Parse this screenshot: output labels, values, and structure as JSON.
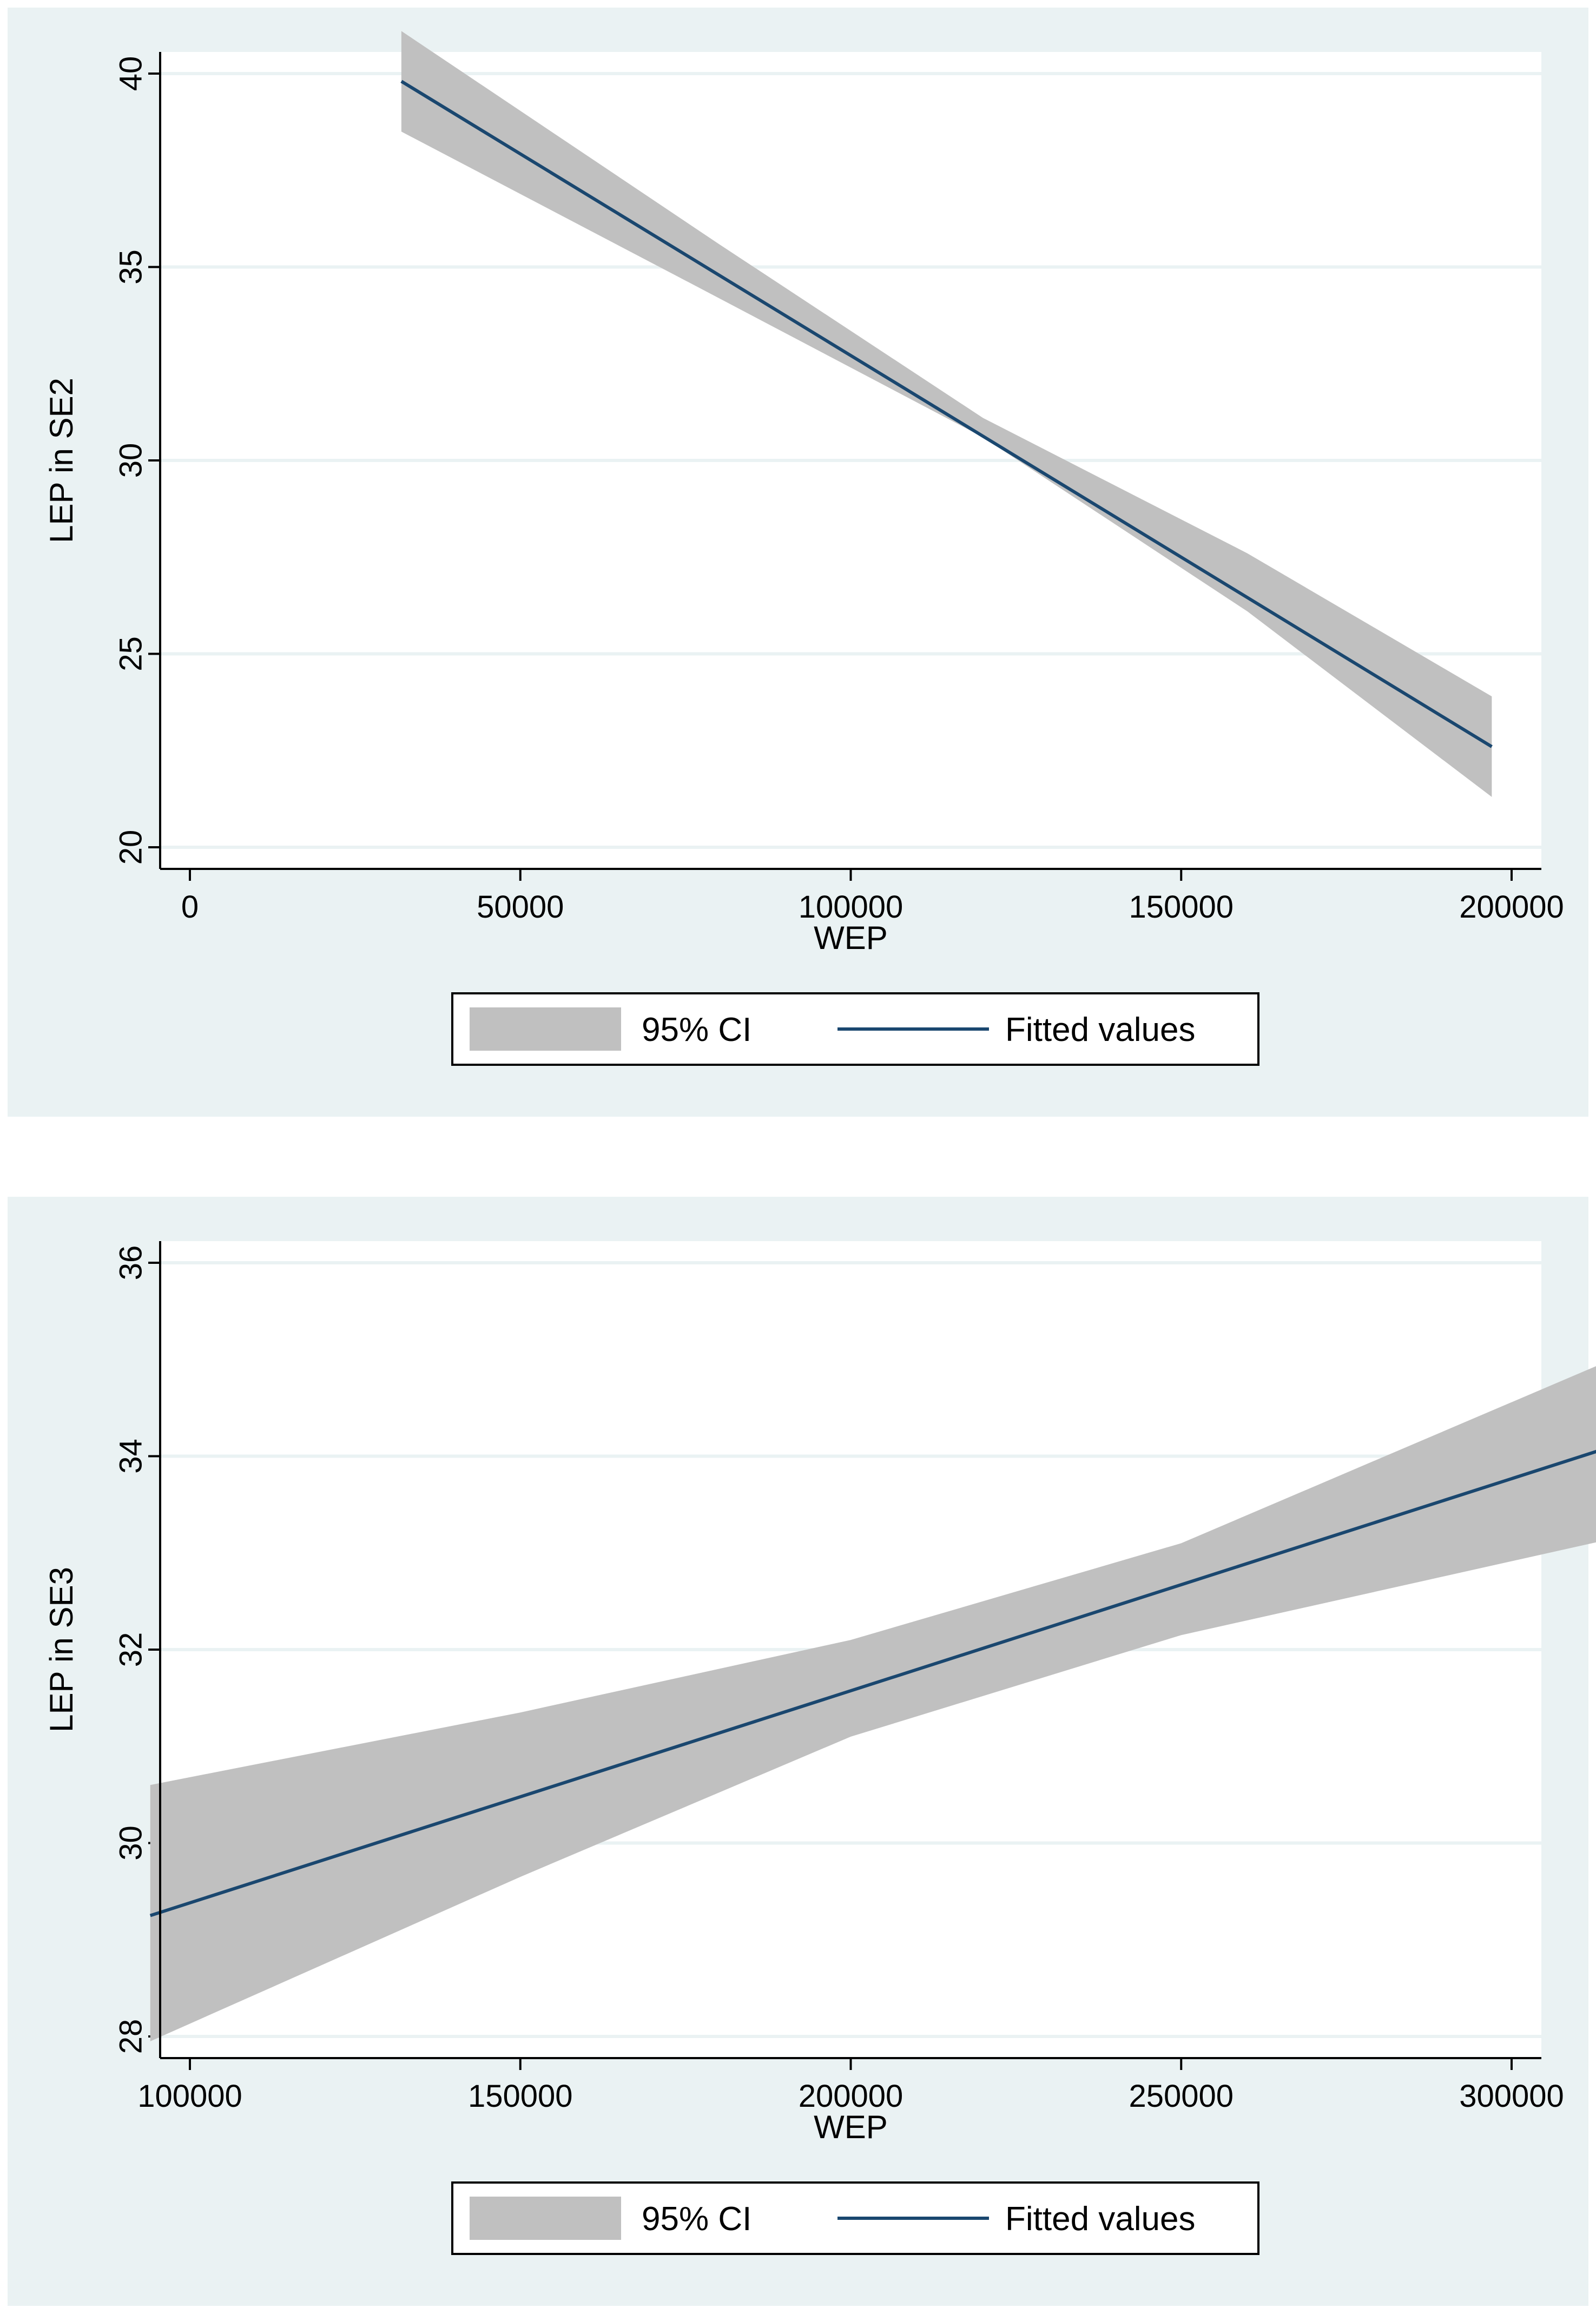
{
  "chart_data": [
    {
      "type": "line",
      "xlabel": "WEP",
      "ylabel": "LEP in SE2",
      "xlim": [
        0,
        200000
      ],
      "ylim": [
        20,
        40
      ],
      "x_ticks": [
        "0",
        "50000",
        "100000",
        "150000",
        "200000"
      ],
      "y_ticks": [
        "20",
        "25",
        "30",
        "35",
        "40"
      ],
      "grid": true,
      "legend_position": "bottom",
      "series": [
        {
          "name": "Fitted values",
          "x": [
            32000,
            197000
          ],
          "y": [
            39.8,
            22.6
          ],
          "color": "#1a476f"
        },
        {
          "name": "95% CI",
          "x": [
            32000,
            80000,
            120000,
            160000,
            197000
          ],
          "lower": [
            38.5,
            34.2,
            30.6,
            26.1,
            21.3
          ],
          "upper": [
            41.1,
            35.6,
            31.1,
            27.6,
            23.9
          ],
          "color": "#c0c0c0"
        }
      ]
    },
    {
      "type": "line",
      "xlabel": "WEP",
      "ylabel": "LEP in SE3",
      "xlim": [
        100000,
        300000
      ],
      "ylim": [
        28,
        36
      ],
      "x_ticks": [
        "100000",
        "150000",
        "200000",
        "250000",
        "300000"
      ],
      "y_ticks": [
        "28",
        "30",
        "32",
        "34",
        "36"
      ],
      "grid": true,
      "legend_position": "bottom",
      "series": [
        {
          "name": "Fitted values",
          "x": [
            94000,
            322000
          ],
          "y": [
            29.25,
            34.25
          ],
          "color": "#1a476f"
        },
        {
          "name": "95% CI",
          "x": [
            94000,
            150000,
            200000,
            250000,
            322000
          ],
          "lower": [
            27.95,
            29.65,
            31.1,
            32.15,
            33.25
          ],
          "upper": [
            30.6,
            31.35,
            32.1,
            33.1,
            35.2
          ],
          "color": "#c0c0c0"
        }
      ]
    }
  ],
  "legend": {
    "ci_label": "95% CI",
    "fit_label": "Fitted values"
  }
}
